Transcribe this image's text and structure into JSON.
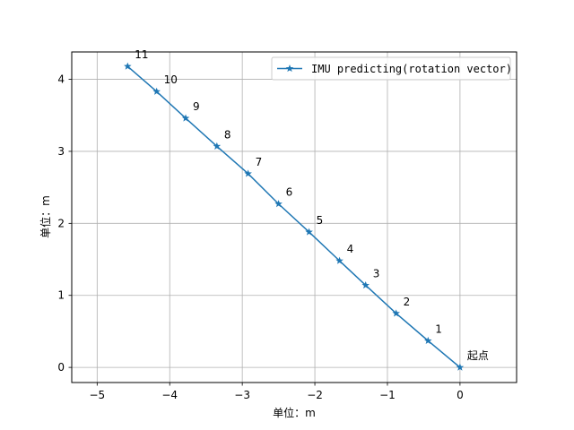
{
  "chart_data": {
    "type": "line",
    "title": "",
    "xlabel": "单位：m",
    "ylabel": "单位：m",
    "xlim": [
      -5.35,
      0.78
    ],
    "ylim": [
      -0.21,
      4.38
    ],
    "xticks": [
      -5,
      -4,
      -3,
      -2,
      -1,
      0
    ],
    "yticks": [
      0,
      1,
      2,
      3,
      4
    ],
    "xtick_labels": [
      "−5",
      "−4",
      "−3",
      "−2",
      "−1",
      "0"
    ],
    "ytick_labels": [
      "0",
      "1",
      "2",
      "3",
      "4"
    ],
    "grid": true,
    "legend_position": "top-right",
    "color": "#1f77b4",
    "marker": "star",
    "series": [
      {
        "name": "IMU predicting(rotation vector)",
        "x": [
          0,
          -0.44,
          -0.88,
          -1.3,
          -1.66,
          -2.08,
          -2.5,
          -2.92,
          -3.35,
          -3.78,
          -4.18,
          -4.58
        ],
        "y": [
          0,
          0.37,
          0.75,
          1.14,
          1.48,
          1.88,
          2.27,
          2.69,
          3.07,
          3.46,
          3.83,
          4.18
        ]
      }
    ],
    "annotations": [
      "起点",
      "1",
      "2",
      "3",
      "4",
      "5",
      "6",
      "7",
      "8",
      "9",
      "10",
      "11"
    ]
  }
}
